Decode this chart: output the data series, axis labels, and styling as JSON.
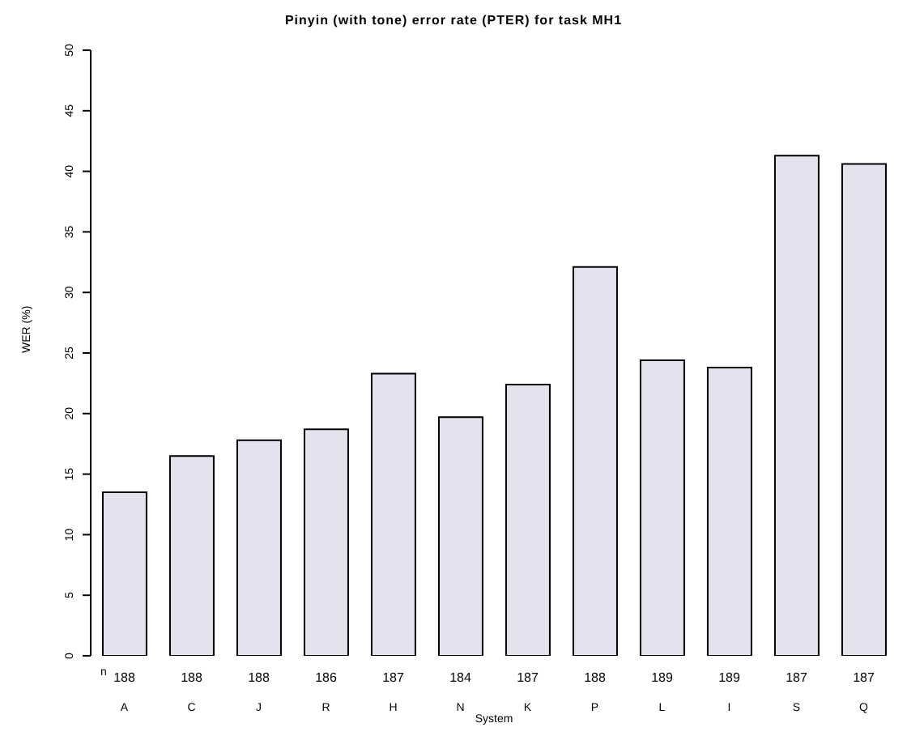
{
  "chart_data": {
    "type": "bar",
    "title": "Pinyin (with tone) error rate (PTER) for task MH1",
    "xlabel": "System",
    "ylabel": "WER (%)",
    "categories": [
      "A",
      "C",
      "J",
      "R",
      "H",
      "N",
      "K",
      "P",
      "L",
      "I",
      "S",
      "Q"
    ],
    "values": [
      13.5,
      16.5,
      17.8,
      18.7,
      23.3,
      19.7,
      22.4,
      32.1,
      24.4,
      23.8,
      41.3,
      40.6
    ],
    "color": "#e3e3f0",
    "ylim": [
      0,
      50
    ],
    "yticks": [
      0,
      5,
      10,
      15,
      20,
      25,
      30,
      35,
      40,
      45,
      50
    ],
    "grid": false,
    "legend": false,
    "annotations": [
      "n",
      "188",
      "188",
      "188",
      "186",
      "187",
      "184",
      "187",
      "188",
      "189",
      "189",
      "187",
      "187"
    ]
  }
}
